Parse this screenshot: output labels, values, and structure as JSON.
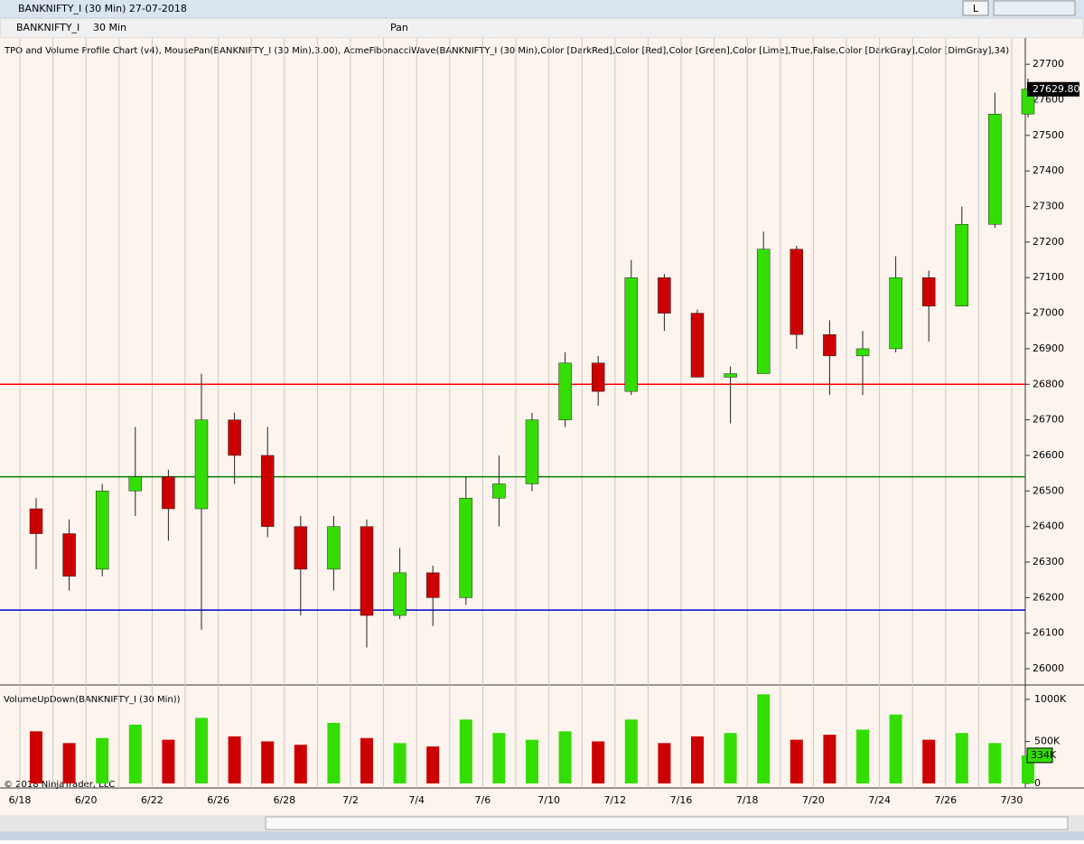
{
  "window": {
    "title": "BANKNIFTY_I (30 Min)  27-07-2018",
    "button": "L"
  },
  "toolbar": {
    "instrument": "BANKNIFTY_I",
    "interval": "30 Min",
    "mode": "Pan"
  },
  "indicators": "TPO and Volume Profile Chart (v4), MousePan(BANKNIFTY_I (30 Min),3.00), AcmeFibonacciWave(BANKNIFTY_I (30 Min),Color [DarkRed],Color [Red],Color [Green],Color [Lime],True,False,Color [DarkGray],Color [DimGray],34)",
  "volume_title": "VolumeUpDown(BANKNIFTY_I (30 Min))",
  "copyright": "© 2018 NinjaTrader, LLC",
  "chart_data": {
    "type": "candlestick",
    "categories": [
      "6/18",
      null,
      "6/20",
      null,
      "6/22",
      null,
      "6/26",
      null,
      "6/28",
      null,
      "7/2",
      null,
      "7/4",
      null,
      "7/6",
      null,
      "7/10",
      null,
      "7/12",
      null,
      "7/16",
      null,
      "7/18",
      null,
      "7/20",
      null,
      "7/24",
      null,
      "7/26",
      null,
      "7/30"
    ],
    "open": [
      26450,
      26380,
      26280,
      26500,
      26540,
      26450,
      26700,
      26600,
      26400,
      26280,
      26400,
      26150,
      26270,
      26200,
      26480,
      26520,
      26700,
      26860,
      26780,
      27100,
      27000,
      26820,
      26830,
      27180,
      26940,
      26880,
      26900,
      27100,
      27020,
      27250,
      27560
    ],
    "high": [
      26480,
      26420,
      26520,
      26680,
      26560,
      26830,
      26720,
      26680,
      26430,
      26430,
      26420,
      26340,
      26290,
      26540,
      26600,
      26720,
      26890,
      26880,
      27150,
      27110,
      27010,
      26850,
      27230,
      27190,
      26980,
      26950,
      27160,
      27120,
      27300,
      27620,
      27660
    ],
    "low": [
      26280,
      26220,
      26260,
      26430,
      26360,
      26110,
      26520,
      26370,
      26150,
      26220,
      26060,
      26140,
      26120,
      26180,
      26400,
      26500,
      26680,
      26740,
      26770,
      26950,
      26820,
      26690,
      26830,
      26900,
      26770,
      26770,
      26890,
      26920,
      27020,
      27240,
      27550
    ],
    "close": [
      26380,
      26260,
      26500,
      26540,
      26450,
      26700,
      26600,
      26400,
      26280,
      26400,
      26150,
      26270,
      26200,
      26480,
      26520,
      26700,
      26860,
      26780,
      27100,
      27000,
      26820,
      26830,
      27180,
      26940,
      26880,
      26900,
      27100,
      27020,
      27250,
      27560,
      27630
    ],
    "up_color": "#33dd00",
    "down_color": "#cc0000",
    "ylim": [
      25957,
      27769
    ],
    "yticks": [
      26000,
      26100,
      26200,
      26300,
      26400,
      26500,
      26600,
      26700,
      26800,
      26900,
      27000,
      27100,
      27200,
      27300,
      27400,
      27500,
      27600,
      27700
    ],
    "last_price": {
      "value": 27629.8,
      "label": "27629.80"
    },
    "hlines": [
      {
        "value": 26800,
        "color": "#ff0000"
      },
      {
        "value": 26540,
        "color": "#008000"
      },
      {
        "value": 26165,
        "color": "#0000cc"
      }
    ],
    "volume": [
      620000,
      480000,
      540000,
      700000,
      520000,
      780000,
      560000,
      500000,
      460000,
      720000,
      540000,
      480000,
      440000,
      760000,
      600000,
      520000,
      620000,
      500000,
      760000,
      480000,
      560000,
      600000,
      1060000,
      520000,
      580000,
      640000,
      820000,
      520000,
      600000,
      480000,
      334000
    ],
    "volume_last": {
      "value": 334000,
      "label": "334K"
    },
    "volume_ylim": [
      -54000,
      1161000
    ],
    "volume_yticks": [
      0,
      {
        "value": 500000,
        "label": "500K"
      },
      {
        "value": 1000000,
        "label": "1000K"
      }
    ],
    "grid": true
  }
}
